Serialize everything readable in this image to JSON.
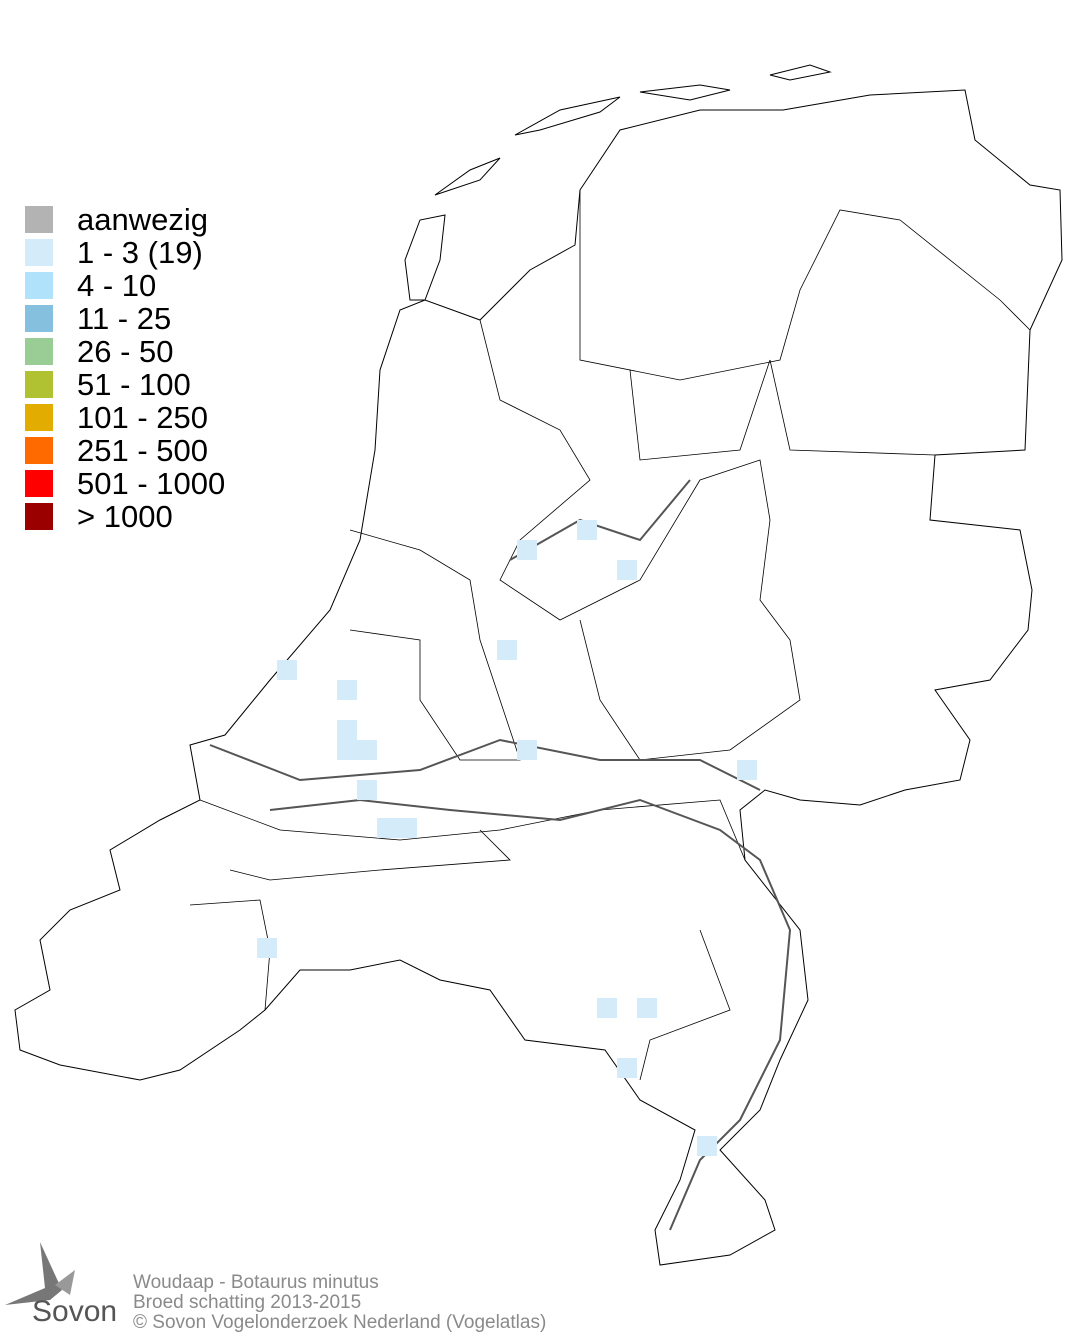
{
  "legend": [
    {
      "label": "aanwezig",
      "color": "#b3b3b3"
    },
    {
      "label": "1 - 3 (19)",
      "color": "#d4ecfa"
    },
    {
      "label": "4 - 10",
      "color": "#b0e2fb"
    },
    {
      "label": "11 - 25",
      "color": "#85c0df"
    },
    {
      "label": "26 - 50",
      "color": "#9acd96"
    },
    {
      "label": "51 - 100",
      "color": "#b0c232"
    },
    {
      "label": "101 - 250",
      "color": "#e2ad00"
    },
    {
      "label": "251 - 500",
      "color": "#ff6a00"
    },
    {
      "label": "501 - 1000",
      "color": "#ff0000"
    },
    {
      "label": "> 1000",
      "color": "#9b0000"
    }
  ],
  "footer": {
    "species": "Woudaap - Botaurus minutus",
    "subtitle": "Broed schatting 2013-2015",
    "copyright": "© Sovon Vogelonderzoek Nederland (Vogelatlas)"
  },
  "logo": {
    "text": "Sovon"
  },
  "occupied_class_color": "#d4ecfa"
}
